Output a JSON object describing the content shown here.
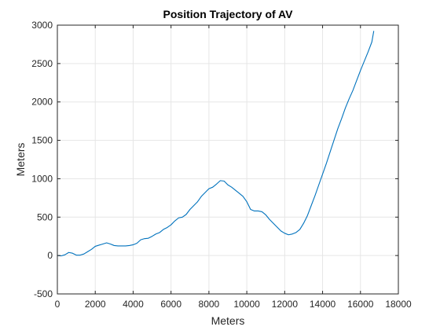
{
  "chart_data": {
    "type": "line",
    "title": "Position Trajectory of AV",
    "xlabel": "Meters",
    "ylabel": "Meters",
    "xlim": [
      0,
      18000
    ],
    "ylim": [
      -500,
      3000
    ],
    "xticks": [
      0,
      2000,
      4000,
      6000,
      8000,
      10000,
      12000,
      14000,
      16000,
      18000
    ],
    "yticks": [
      -500,
      0,
      500,
      1000,
      1500,
      2000,
      2500,
      3000
    ],
    "xtick_labels": [
      "0",
      "2000",
      "4000",
      "6000",
      "8000",
      "10000",
      "12000",
      "14000",
      "16000",
      "18000"
    ],
    "ytick_labels": [
      "-500",
      "0",
      "500",
      "1000",
      "1500",
      "2000",
      "2500",
      "3000"
    ],
    "grid": true,
    "legend": "none",
    "colors": {
      "series": "#0072bd",
      "grid": "#e6e6e6",
      "axis": "#262626"
    },
    "series": [
      {
        "x": [
          0,
          200,
          400,
          600,
          800,
          1000,
          1200,
          1400,
          1600,
          1800,
          2000,
          2200,
          2400,
          2600,
          2800,
          3000,
          3200,
          3400,
          3600,
          3800,
          4000,
          4200,
          4400,
          4600,
          4800,
          5000,
          5200,
          5400,
          5600,
          5800,
          6000,
          6200,
          6400,
          6600,
          6800,
          7000,
          7200,
          7400,
          7600,
          7800,
          8000,
          8200,
          8400,
          8600,
          8800,
          9000,
          9200,
          9400,
          9600,
          9800,
          10000,
          10200,
          10400,
          10600,
          10800,
          11000,
          11200,
          11400,
          11600,
          11800,
          12000,
          12200,
          12400,
          12600,
          12800,
          13000,
          13200,
          13400,
          13600,
          13800,
          14000,
          14200,
          14400,
          14600,
          14800,
          15000,
          15200,
          15400,
          15600,
          15800,
          16000,
          16200,
          16400,
          16600,
          16700
        ],
        "y": [
          0,
          -5,
          10,
          40,
          30,
          5,
          5,
          20,
          50,
          80,
          120,
          135,
          150,
          165,
          150,
          130,
          125,
          125,
          125,
          130,
          140,
          160,
          205,
          220,
          225,
          250,
          280,
          300,
          340,
          365,
          400,
          450,
          490,
          500,
          535,
          600,
          650,
          700,
          770,
          820,
          870,
          890,
          930,
          975,
          970,
          920,
          890,
          850,
          810,
          770,
          700,
          600,
          580,
          580,
          570,
          530,
          470,
          420,
          370,
          320,
          290,
          270,
          280,
          300,
          340,
          420,
          520,
          650,
          780,
          920,
          1060,
          1200,
          1350,
          1500,
          1650,
          1780,
          1920,
          2040,
          2150,
          2280,
          2410,
          2530,
          2650,
          2780,
          2920
        ]
      }
    ]
  }
}
